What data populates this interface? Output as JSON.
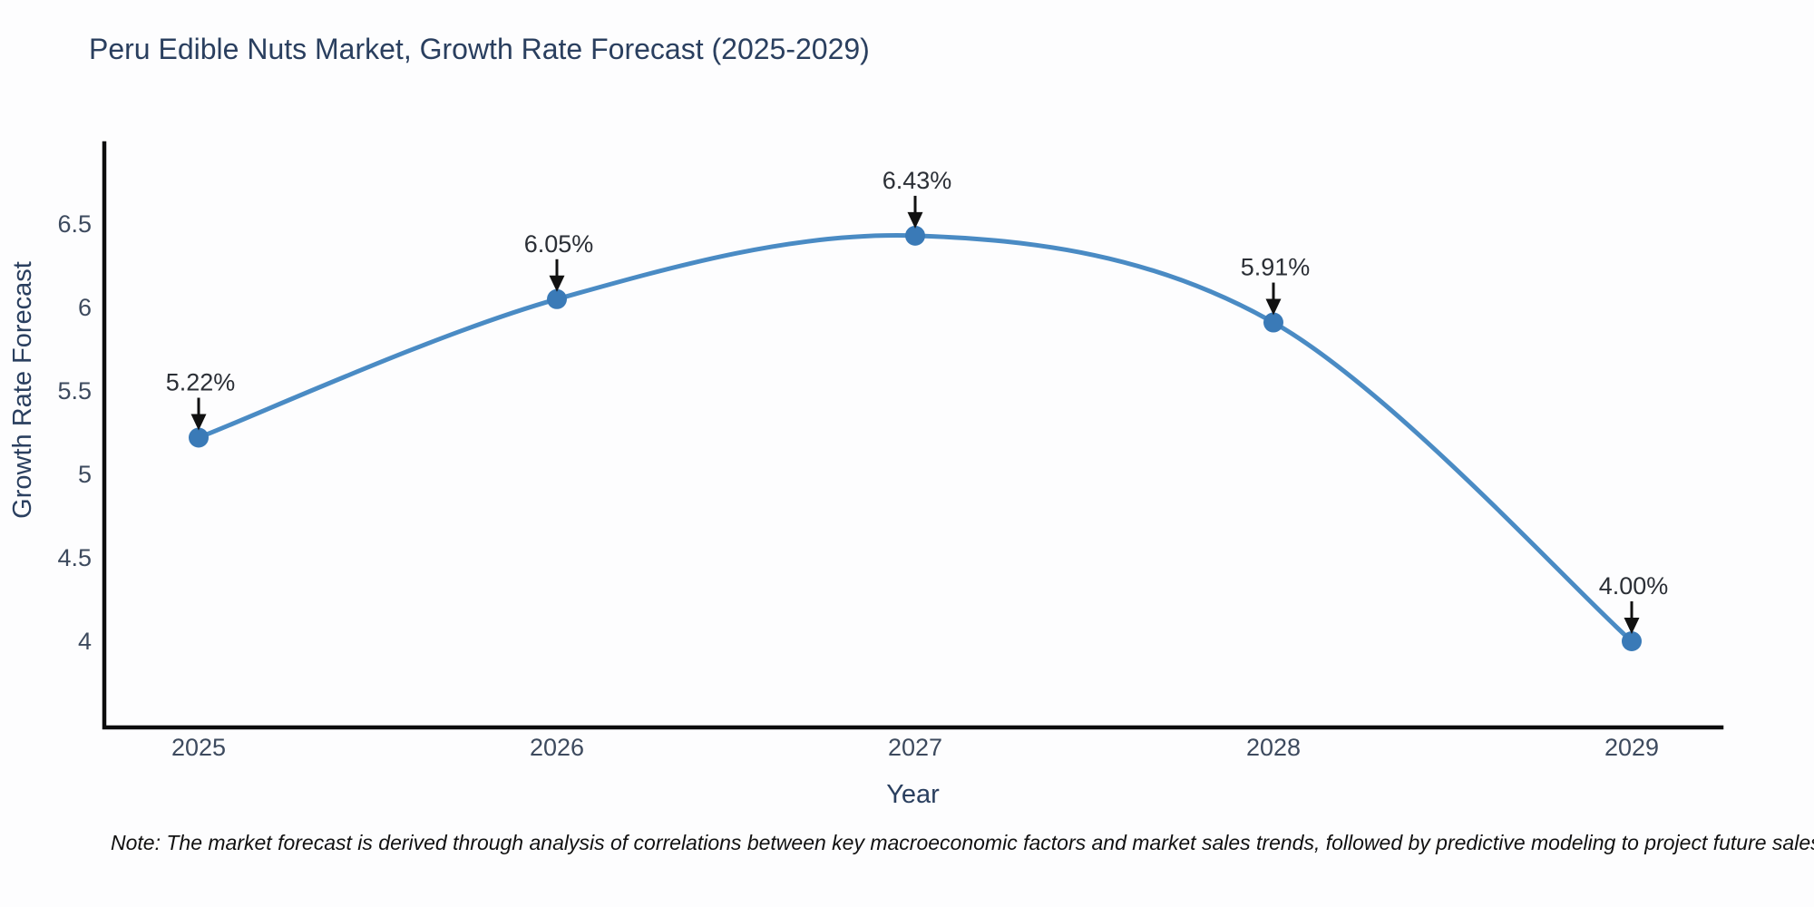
{
  "title": "Peru Edible Nuts Market, Growth Rate Forecast (2025-2029)",
  "note": "Note: The market forecast is derived through analysis of correlations between key macroeconomic factors and market sales trends, followed by predictive modeling to project future sales",
  "chart_data": {
    "type": "line",
    "title": "Peru Edible Nuts Market, Growth Rate Forecast (2025-2029)",
    "xlabel": "Year",
    "ylabel": "Growth Rate Forecast",
    "x": [
      2025,
      2026,
      2027,
      2028,
      2029
    ],
    "series": [
      {
        "name": "Growth Rate Forecast",
        "values": [
          5.22,
          6.05,
          6.43,
          5.91,
          4.0
        ],
        "point_labels": [
          "5.22%",
          "6.05%",
          "6.43%",
          "5.91%",
          "4.00%"
        ]
      }
    ],
    "xtick_labels": [
      "2025",
      "2026",
      "2027",
      "2028",
      "2029"
    ],
    "ytick_labels": [
      "4",
      "4.5",
      "5",
      "5.5",
      "6",
      "6.5"
    ],
    "yticks": [
      4,
      4.5,
      5,
      5.5,
      6,
      6.5
    ],
    "ylim": [
      3.5,
      7.0
    ],
    "grid": false,
    "legend_position": "none",
    "line_shape": "spline",
    "colors": {
      "line": "#4a8bc4",
      "marker": "#3a7ab7",
      "annotation_text": "#2b2f36",
      "annotation_arrow": "#111111",
      "axis_line": "#0d0d0d",
      "tick_label": "#3d4a5e",
      "axis_title": "#2a3f5f",
      "title": "#2a3f5f",
      "background": "#fdfdfe"
    }
  }
}
